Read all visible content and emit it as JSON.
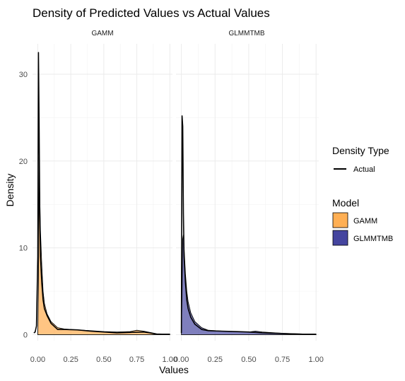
{
  "chart_data": {
    "type": "area",
    "title": "Density of Predicted Values vs Actual Values",
    "xlabel": "Values",
    "ylabel": "Density",
    "xlim": [
      -0.04,
      1.02
    ],
    "ylim": [
      -0.7,
      33.5
    ],
    "x_ticks": [
      "0.00",
      "0.25",
      "0.50",
      "0.75",
      "1.00"
    ],
    "x_tick_values": [
      0,
      0.25,
      0.5,
      0.75,
      1.0
    ],
    "y_ticks": [
      "0",
      "10",
      "20",
      "30"
    ],
    "y_tick_values": [
      0,
      10,
      20,
      30
    ],
    "grid": true,
    "legend_position": "right",
    "legends": [
      {
        "title": "Density Type",
        "entries": [
          {
            "label": "Actual",
            "kind": "line",
            "color": "#000000"
          }
        ]
      },
      {
        "title": "Model",
        "entries": [
          {
            "label": "GAMM",
            "kind": "fill",
            "color": "#FFA640"
          },
          {
            "label": "GLMMTMB",
            "kind": "fill",
            "color": "#3B3B9A"
          }
        ]
      }
    ],
    "panels": [
      {
        "name": "GAMM",
        "fill_color": "#FFA640",
        "predicted": [
          [
            0.0,
            0.0
          ],
          [
            0.005,
            6.0
          ],
          [
            0.01,
            20.5
          ],
          [
            0.015,
            16.0
          ],
          [
            0.02,
            12.0
          ],
          [
            0.03,
            8.0
          ],
          [
            0.04,
            5.0
          ],
          [
            0.05,
            3.6
          ],
          [
            0.07,
            2.4
          ],
          [
            0.1,
            1.5
          ],
          [
            0.15,
            0.8
          ],
          [
            0.2,
            0.65
          ],
          [
            0.3,
            0.55
          ],
          [
            0.4,
            0.45
          ],
          [
            0.5,
            0.35
          ],
          [
            0.6,
            0.3
          ],
          [
            0.7,
            0.35
          ],
          [
            0.75,
            0.5
          ],
          [
            0.8,
            0.4
          ],
          [
            0.85,
            0.25
          ],
          [
            0.9,
            0.1
          ],
          [
            1.0,
            0.05
          ]
        ],
        "actual": [
          [
            -0.03,
            0.2
          ],
          [
            -0.02,
            0.3
          ],
          [
            -0.01,
            1.0
          ],
          [
            0.0,
            9.0
          ],
          [
            0.005,
            32.5
          ],
          [
            0.01,
            24.0
          ],
          [
            0.015,
            14.0
          ],
          [
            0.02,
            9.0
          ],
          [
            0.03,
            6.0
          ],
          [
            0.04,
            4.0
          ],
          [
            0.05,
            3.0
          ],
          [
            0.07,
            2.2
          ],
          [
            0.1,
            1.3
          ],
          [
            0.15,
            0.6
          ],
          [
            0.2,
            0.6
          ],
          [
            0.3,
            0.55
          ],
          [
            0.4,
            0.4
          ],
          [
            0.5,
            0.3
          ],
          [
            0.6,
            0.2
          ],
          [
            0.7,
            0.25
          ],
          [
            0.8,
            0.3
          ],
          [
            0.85,
            0.2
          ],
          [
            0.9,
            0.05
          ],
          [
            1.0,
            0.05
          ]
        ]
      },
      {
        "name": "GLMMTMB",
        "fill_color": "#3B3B9A",
        "predicted": [
          [
            0.0,
            0.0
          ],
          [
            0.005,
            5.0
          ],
          [
            0.01,
            11.0
          ],
          [
            0.015,
            11.5
          ],
          [
            0.02,
            10.0
          ],
          [
            0.03,
            7.0
          ],
          [
            0.04,
            5.0
          ],
          [
            0.05,
            3.8
          ],
          [
            0.07,
            2.5
          ],
          [
            0.1,
            1.5
          ],
          [
            0.15,
            0.8
          ],
          [
            0.2,
            0.5
          ],
          [
            0.3,
            0.4
          ],
          [
            0.4,
            0.35
          ],
          [
            0.5,
            0.3
          ],
          [
            0.55,
            0.4
          ],
          [
            0.6,
            0.3
          ],
          [
            0.7,
            0.2
          ],
          [
            0.8,
            0.12
          ],
          [
            0.9,
            0.08
          ],
          [
            1.0,
            0.05
          ]
        ],
        "actual": [
          [
            0.0,
            0.2
          ],
          [
            0.005,
            25.2
          ],
          [
            0.01,
            24.0
          ],
          [
            0.015,
            14.0
          ],
          [
            0.02,
            9.0
          ],
          [
            0.03,
            6.0
          ],
          [
            0.04,
            4.0
          ],
          [
            0.05,
            3.0
          ],
          [
            0.07,
            2.0
          ],
          [
            0.1,
            1.2
          ],
          [
            0.15,
            0.6
          ],
          [
            0.2,
            0.45
          ],
          [
            0.3,
            0.4
          ],
          [
            0.4,
            0.35
          ],
          [
            0.5,
            0.3
          ],
          [
            0.6,
            0.2
          ],
          [
            0.7,
            0.15
          ],
          [
            0.8,
            0.1
          ],
          [
            0.9,
            0.05
          ],
          [
            1.0,
            0.05
          ]
        ]
      }
    ]
  }
}
